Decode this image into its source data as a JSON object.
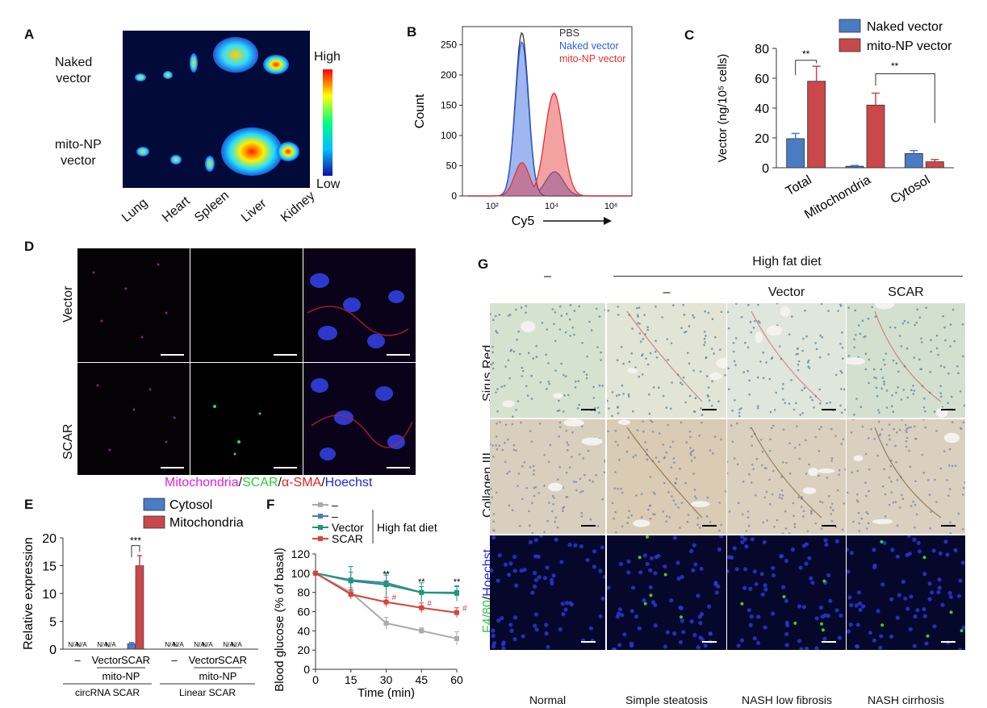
{
  "panels": {
    "a": "A",
    "b": "B",
    "c": "C",
    "d": "D",
    "e": "E",
    "f": "F",
    "g": "G"
  },
  "panel_a": {
    "rows": [
      "Naked\nvector",
      "mito-NP\nvector"
    ],
    "row1_line1": "Naked",
    "row1_line2": "vector",
    "row2_line1": "mito-NP",
    "row2_line2": "vector",
    "organs": [
      "Lung",
      "Heart",
      "Spleen",
      "Liver",
      "Kidney"
    ],
    "scale_high": "High",
    "scale_low": "Low"
  },
  "panel_d": {
    "rows": [
      "Vector",
      "SCAR"
    ],
    "legend": [
      "Mitochondria",
      "/",
      "SCAR",
      "/",
      "α-SMA",
      "/",
      "Hoechst"
    ],
    "legend_colors": [
      "#e11ee1",
      "#111111",
      "#2ecc40",
      "#111111",
      "#e02020",
      "#111111",
      "#2222ee"
    ]
  },
  "panel_g": {
    "group_header": "High fat diet",
    "columns": [
      "–",
      "–",
      "Vector",
      "SCAR"
    ],
    "rows": [
      "Sirus Red",
      "Collagen III",
      "F4/80/Hoechst"
    ],
    "row3_green": "F4/80",
    "row3_slash": "/",
    "row3_blue": "Hoechst",
    "conditions": [
      "Normal",
      "Simple steatosis",
      "NASH low fibrosis",
      "NASH cirrhosis"
    ]
  },
  "chart_data": [
    {
      "id": "B",
      "type": "area",
      "xlabel": "Cy5",
      "ylabel": "Count",
      "xscale": "log",
      "xticks": [
        "10²",
        "10⁴",
        "10⁶"
      ],
      "ylim": [
        0,
        280
      ],
      "yticks": [
        0,
        50,
        100,
        150,
        200,
        250
      ],
      "series": [
        {
          "name": "PBS",
          "color": "#333333",
          "peak_x": 1000,
          "peak_y": 270
        },
        {
          "name": "Naked vector",
          "color": "#2b5fe0",
          "peak_x": 1000,
          "peak_y": 255
        },
        {
          "name": "mito-NP vector",
          "color": "#e53030",
          "peak_x": 12000,
          "peak_y": 170
        }
      ]
    },
    {
      "id": "C",
      "type": "bar",
      "ylabel": "Vector (ng/10⁵ cells)",
      "ylim": [
        0,
        80
      ],
      "yticks": [
        0,
        20,
        40,
        60,
        80
      ],
      "categories": [
        "Total",
        "Mitochondria",
        "Cytosol"
      ],
      "series": [
        {
          "name": "Naked vector",
          "color": "#4a7cc4",
          "values": [
            19.5,
            1,
            9.5
          ],
          "errors": [
            3.5,
            0.5,
            2
          ]
        },
        {
          "name": "mito-NP vector",
          "color": "#c9484a",
          "values": [
            58,
            42,
            4
          ],
          "errors": [
            10,
            8,
            1.5
          ]
        }
      ],
      "annotations": [
        "**",
        "**"
      ]
    },
    {
      "id": "E",
      "type": "bar",
      "ylabel": "Relative expression",
      "ylim": [
        0,
        20
      ],
      "yticks": [
        0,
        5,
        10,
        15,
        20
      ],
      "series_names": [
        "Cytosol",
        "Mitochondria"
      ],
      "colors": [
        "#4a7cc4",
        "#c9484a"
      ],
      "groups": [
        {
          "label": "–",
          "values": [
            null,
            null
          ],
          "text": [
            "N/A",
            "N/A"
          ]
        },
        {
          "label": "Vector",
          "values": [
            null,
            null
          ],
          "text": [
            "N/A",
            "N/A"
          ]
        },
        {
          "label": "SCAR",
          "values": [
            1,
            15
          ],
          "errors": [
            0.2,
            1.8
          ],
          "text": [
            "",
            ""
          ]
        },
        {
          "label": "–",
          "values": [
            null,
            null
          ],
          "text": [
            "N/A",
            "N/A"
          ]
        },
        {
          "label": "Vector",
          "values": [
            null,
            null
          ],
          "text": [
            "N/A",
            "N/A"
          ]
        },
        {
          "label": "SCAR",
          "values": [
            null,
            null
          ],
          "text": [
            "N/A",
            "N/A"
          ]
        }
      ],
      "sub_label": "mito-NP",
      "sections": [
        "circRNA SCAR",
        "Linear SCAR"
      ],
      "annotation": "***"
    },
    {
      "id": "F",
      "type": "line",
      "xlabel": "Time (min)",
      "ylabel": "Blood glucose (% of basal)",
      "x": [
        0,
        15,
        30,
        45,
        60
      ],
      "ylim": [
        0,
        120
      ],
      "yticks": [
        0,
        20,
        40,
        60,
        80,
        100,
        120
      ],
      "legend_group": "High fat diet",
      "series": [
        {
          "name": "–",
          "color": "#aaaaaa",
          "values": [
            100,
            80,
            48,
            40,
            32
          ],
          "errors": [
            0,
            5,
            6,
            3,
            7
          ]
        },
        {
          "name": "–",
          "color": "#4a7cc4",
          "values": [
            100,
            93,
            90,
            80,
            80
          ],
          "errors": [
            0,
            8,
            8,
            6,
            6
          ]
        },
        {
          "name": "Vector",
          "color": "#1a9a70",
          "values": [
            100,
            92,
            88,
            80,
            79
          ],
          "errors": [
            0,
            15,
            12,
            10,
            8
          ]
        },
        {
          "name": "SCAR",
          "color": "#d9413a",
          "values": [
            100,
            78,
            70,
            64,
            59
          ],
          "errors": [
            0,
            5,
            5,
            5,
            5
          ]
        }
      ],
      "annotations": [
        "**",
        "**",
        "**",
        "#",
        "#",
        "#"
      ]
    }
  ]
}
